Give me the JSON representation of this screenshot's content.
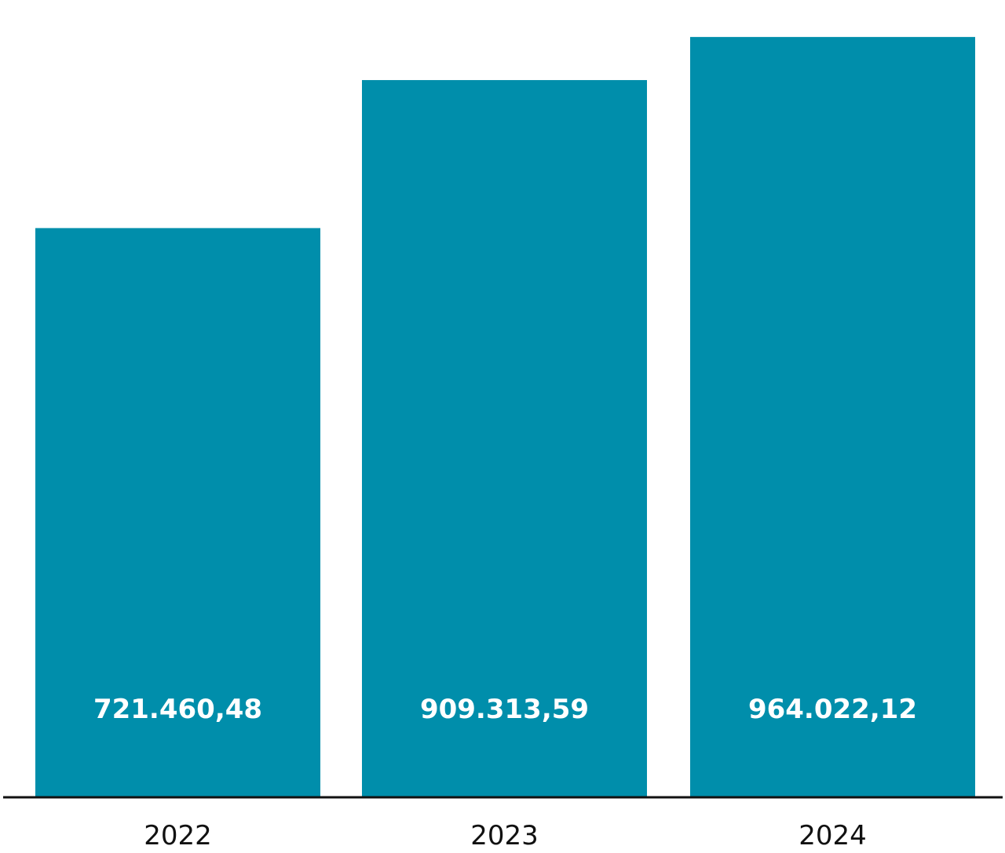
{
  "chart_data": {
    "type": "bar",
    "categories": [
      "2022",
      "2023",
      "2024"
    ],
    "values": [
      721460.48,
      909313.59,
      964022.12
    ],
    "value_labels": [
      "721.460,48",
      "909.313,59",
      "964.022,12"
    ],
    "ylim": [
      0,
      1000000
    ],
    "grid": false,
    "legend": "none",
    "colors": {
      "bar": "#008eab",
      "axis": "#111111",
      "value_label": "#ffffff"
    }
  }
}
